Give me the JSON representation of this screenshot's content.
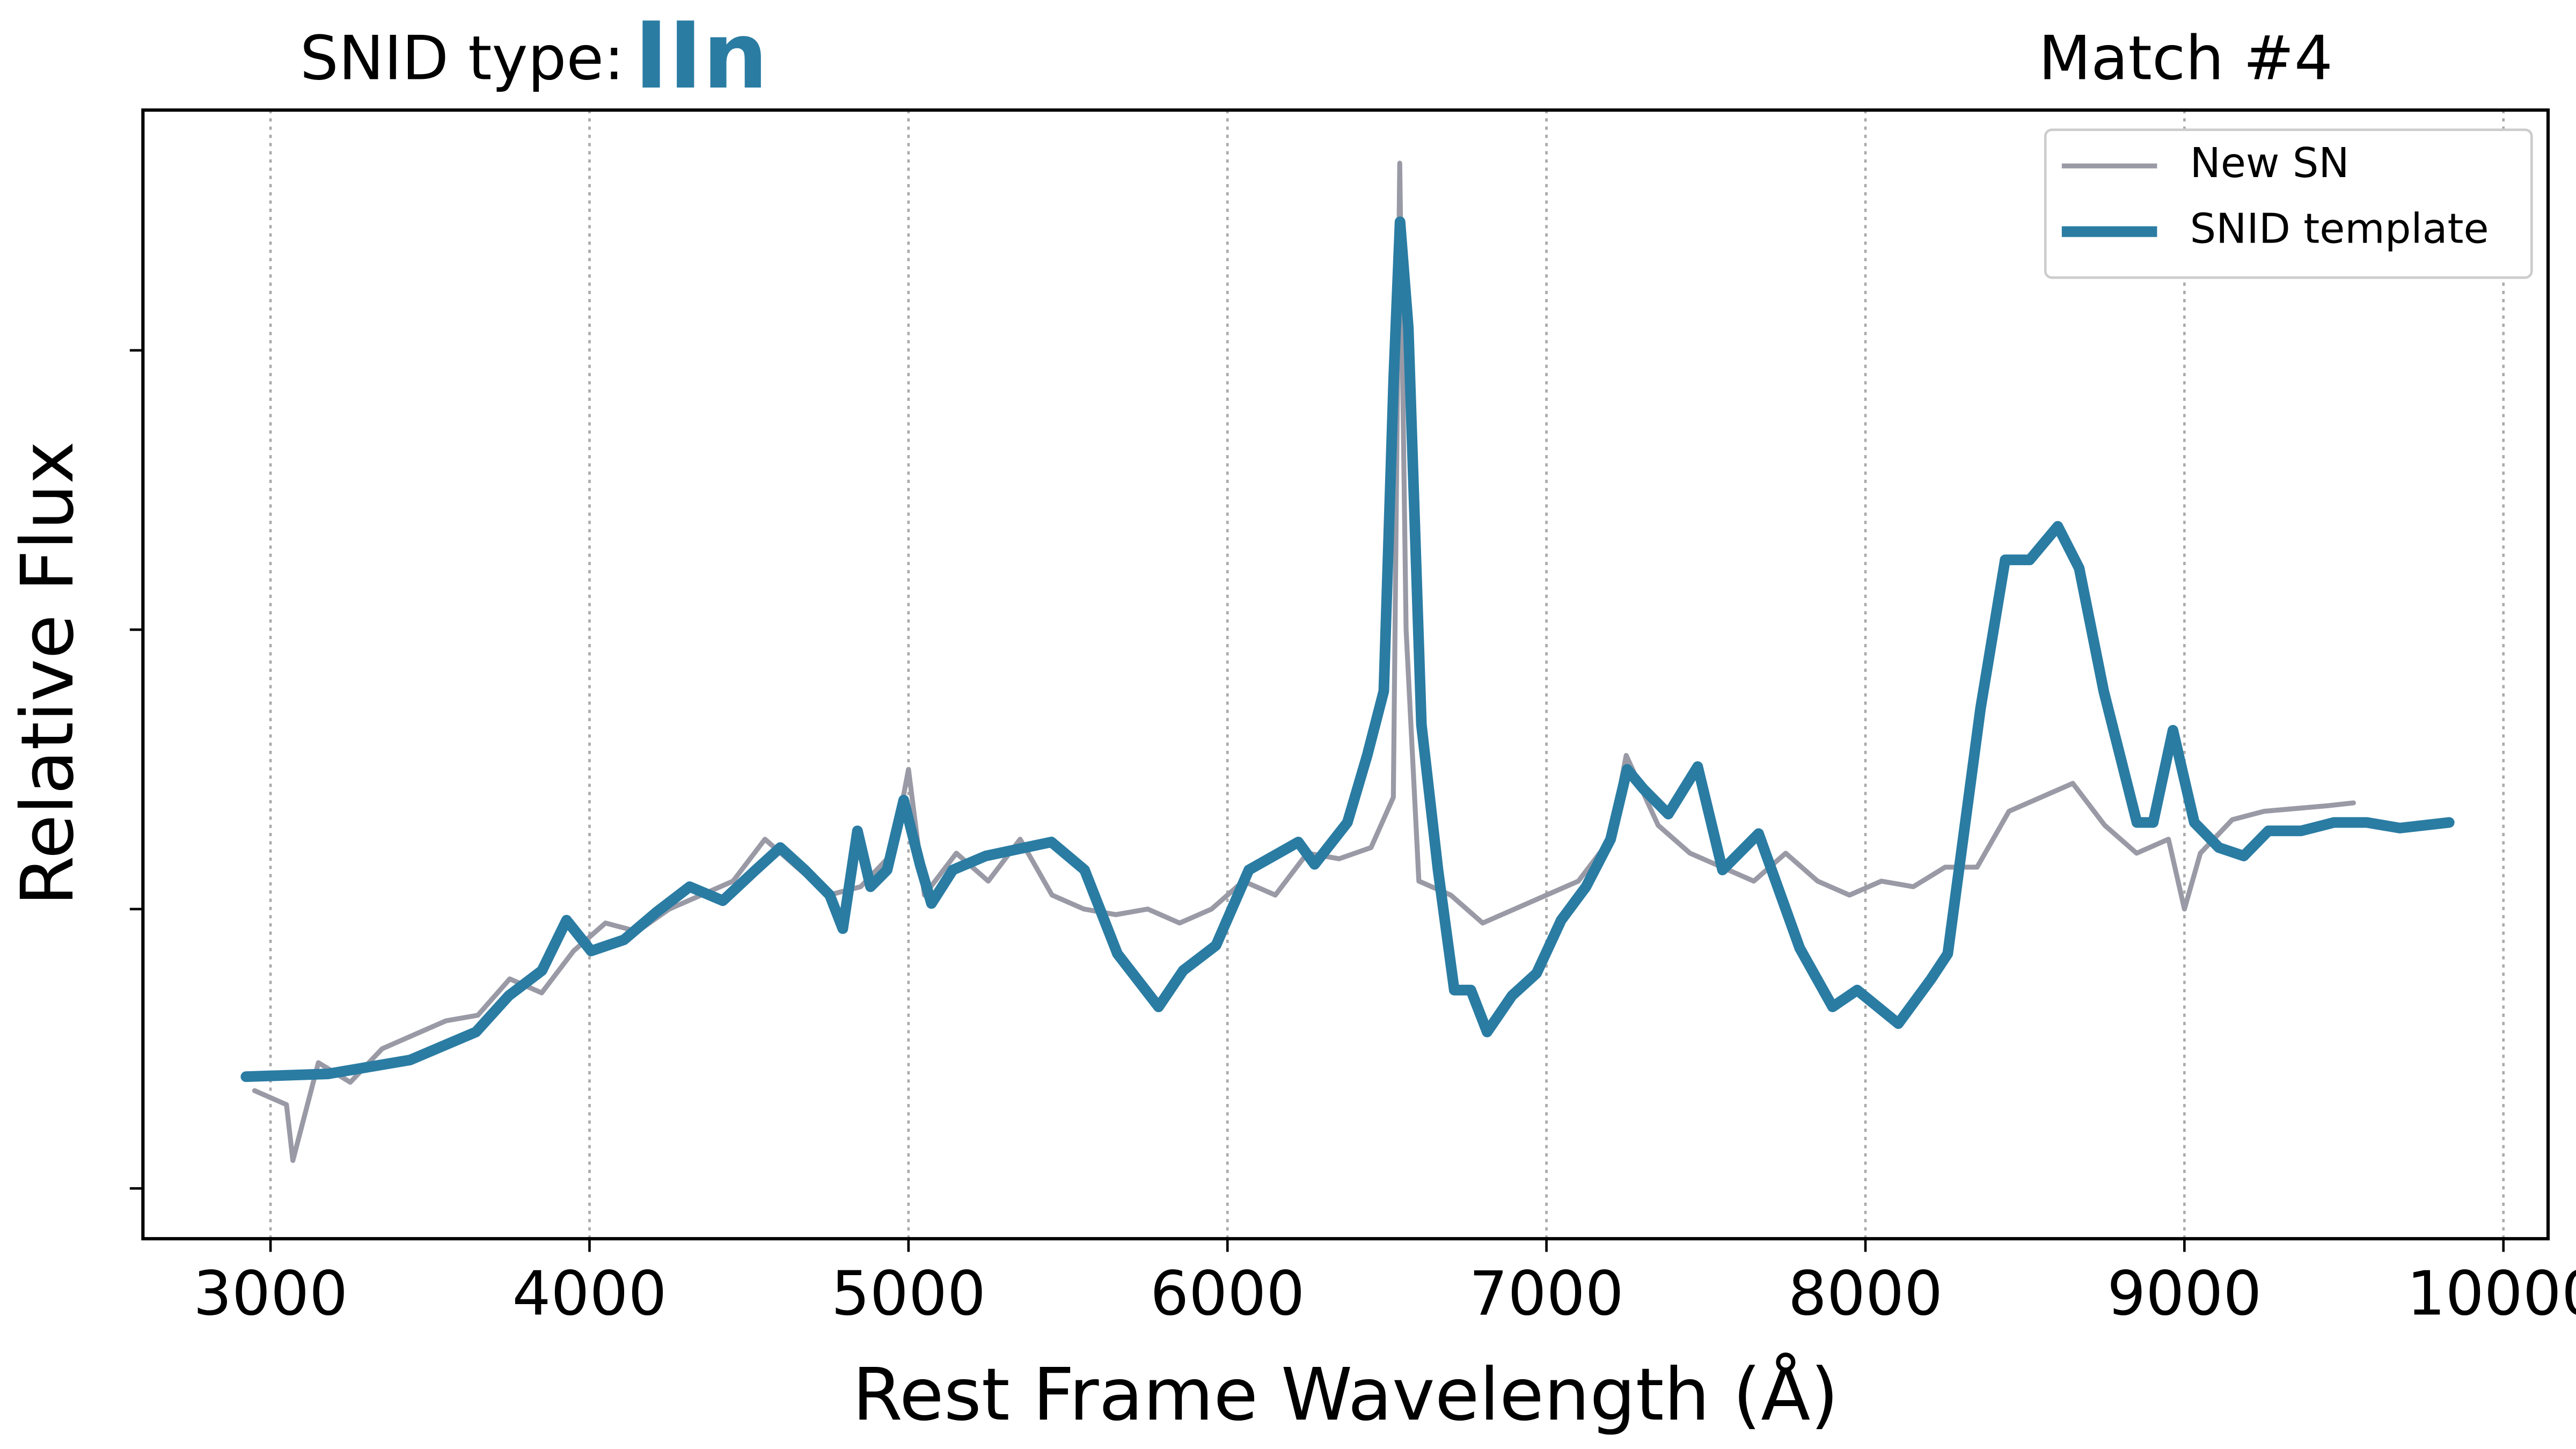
{
  "chart_data": {
    "type": "line",
    "title_prefix": "SNID type:",
    "title_type": "IIn",
    "match_label": "Match #4",
    "xlabel": "Rest Frame Wavelength (Å)",
    "ylabel": "Relative Flux",
    "xlim": [
      2600,
      10140
    ],
    "ylim": [
      -0.18,
      3.86
    ],
    "xticks": [
      3000,
      4000,
      5000,
      6000,
      7000,
      8000,
      9000,
      10000
    ],
    "yticks": [
      0,
      1,
      2,
      3
    ],
    "grid": "x",
    "legend": "upper right",
    "series": [
      {
        "name": "New SN",
        "color": "#9a9aa6",
        "x": [
          2950,
          3050,
          3070,
          3150,
          3250,
          3350,
          3450,
          3550,
          3650,
          3750,
          3850,
          3950,
          4050,
          4150,
          4250,
          4350,
          4450,
          4550,
          4650,
          4750,
          4850,
          4950,
          5000,
          5050,
          5150,
          5250,
          5350,
          5450,
          5550,
          5650,
          5750,
          5850,
          5950,
          6050,
          6150,
          6250,
          6350,
          6450,
          6520,
          6540,
          6560,
          6600,
          6700,
          6800,
          6900,
          7000,
          7100,
          7200,
          7250,
          7350,
          7450,
          7550,
          7650,
          7750,
          7850,
          7950,
          8050,
          8150,
          8250,
          8350,
          8450,
          8550,
          8650,
          8750,
          8850,
          8950,
          9000,
          9050,
          9150,
          9250,
          9350,
          9450,
          9530
        ],
        "values": [
          0.35,
          0.3,
          0.1,
          0.45,
          0.38,
          0.5,
          0.55,
          0.6,
          0.62,
          0.75,
          0.7,
          0.85,
          0.95,
          0.92,
          1.0,
          1.05,
          1.1,
          1.25,
          1.15,
          1.05,
          1.08,
          1.2,
          1.5,
          1.05,
          1.2,
          1.1,
          1.25,
          1.05,
          1.0,
          0.98,
          1.0,
          0.95,
          1.0,
          1.1,
          1.05,
          1.2,
          1.18,
          1.22,
          1.4,
          3.67,
          2.0,
          1.1,
          1.05,
          0.95,
          1.0,
          1.05,
          1.1,
          1.25,
          1.55,
          1.3,
          1.2,
          1.15,
          1.1,
          1.2,
          1.1,
          1.05,
          1.1,
          1.08,
          1.15,
          1.15,
          1.35,
          1.4,
          1.45,
          1.3,
          1.2,
          1.25,
          1.0,
          1.2,
          1.32,
          1.35,
          1.36,
          1.37,
          1.38
        ]
      },
      {
        "name": "SNID template",
        "color": "#2a7ca3",
        "x": [
          2923,
          3180,
          3438,
          3644,
          3747,
          3851,
          3928,
          4005,
          4108,
          4211,
          4314,
          4418,
          4521,
          4598,
          4675,
          4753,
          4794,
          4840,
          4881,
          4933,
          4985,
          5036,
          5072,
          5139,
          5242,
          5448,
          5552,
          5655,
          5784,
          5861,
          5964,
          6067,
          6222,
          6273,
          6376,
          6438,
          6490,
          6521,
          6541,
          6567,
          6608,
          6660,
          6711,
          6763,
          6814,
          6892,
          6969,
          7046,
          7124,
          7201,
          7253,
          7304,
          7382,
          7474,
          7552,
          7665,
          7794,
          7897,
          7974,
          8103,
          8206,
          8258,
          8361,
          8438,
          8515,
          8603,
          8670,
          8747,
          8851,
          8902,
          8964,
          9031,
          9108,
          9186,
          9263,
          9366,
          9469,
          9572,
          9675,
          9830
        ],
        "values": [
          0.4,
          0.41,
          0.46,
          0.56,
          0.69,
          0.78,
          0.96,
          0.85,
          0.89,
          0.99,
          1.08,
          1.03,
          1.14,
          1.22,
          1.14,
          1.05,
          0.93,
          1.28,
          1.08,
          1.14,
          1.39,
          1.16,
          1.02,
          1.14,
          1.19,
          1.24,
          1.14,
          0.84,
          0.65,
          0.78,
          0.87,
          1.14,
          1.24,
          1.16,
          1.31,
          1.55,
          1.78,
          2.9,
          3.46,
          3.08,
          1.66,
          1.14,
          0.71,
          0.71,
          0.56,
          0.69,
          0.77,
          0.96,
          1.08,
          1.25,
          1.5,
          1.43,
          1.34,
          1.51,
          1.14,
          1.27,
          0.86,
          0.65,
          0.71,
          0.59,
          0.75,
          0.84,
          1.72,
          2.25,
          2.25,
          2.37,
          2.22,
          1.78,
          1.31,
          1.31,
          1.64,
          1.31,
          1.22,
          1.19,
          1.28,
          1.28,
          1.31,
          1.31,
          1.29,
          1.31
        ]
      }
    ]
  }
}
